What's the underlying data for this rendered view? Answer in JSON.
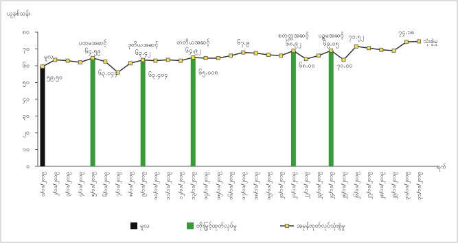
{
  "chart_data": {
    "type": "bar-line",
    "y_label": "ယူနစ်သန်း",
    "x_label": "ရက်",
    "categories": [
      "၁/၁၀/၂၀၁၉",
      "၂/၁၀/၂၀၁၉",
      "၃/၁၀/၂၀၁၉",
      "၄/၁၀/၂၀၁၉",
      "၅/၁၀/၂၀၁၉",
      "၆/၁၀/၂၀၁၉",
      "၇/၁၀/၂၀၁၉",
      "၈/၁၀/၂၀၁၉",
      "၉/၁၀/၂၀၁၉",
      "၁၀/၁၀/၂၀၁၉",
      "၁၁/၁၀/၂၀၁၉",
      "၁၂/၁၀/၂၀၁၉",
      "၁၃/၁၀/၂၀၁၉",
      "၁၄/၁၀/၂၀၁၉",
      "၁၅/၁၀/၂၀၁၉",
      "၁၆/၁၀/၂၀၁၉",
      "၁၇/၁၀/၂၀၁၉",
      "၁၈/၁၀/၂၀၁၉",
      "၁၉/၁၀/၂၀၁၉",
      "၂၀/၁၀/၂၀၁၉",
      "၂၁/၁၀/၂၀၁၉",
      "၂၂/၁၀/၂၀၁၉",
      "၂၃/၁၀/၂၀၁၉",
      "၂၄/၁၀/၂၀၁၉",
      "၂၅/၁၀/၂၀၁၉",
      "၂၆/၁၀/၂၀၁၉",
      "၂၇/၁၀/၂၀၁၉",
      "၂၈/၁၀/၂၀၁၉",
      "၂၉/၁၀/၂၀၁၉",
      "၃၀/၁၀/၂၀၁၉",
      "၃၁/၁၀/၂၀၁၉"
    ],
    "series": [
      {
        "name": "မူလ",
        "kind": "bar",
        "color": "#111111",
        "values": [
          59.5,
          null,
          null,
          null,
          null,
          null,
          null,
          null,
          null,
          null,
          null,
          null,
          null,
          null,
          null,
          null,
          null,
          null,
          null,
          null,
          null,
          null,
          null,
          null,
          null,
          null,
          null,
          null,
          null,
          null,
          null
        ],
        "value_labels": [
          "၅၉.၅၀",
          null,
          null,
          null,
          null,
          null,
          null,
          null,
          null,
          null,
          null,
          null,
          null,
          null,
          null,
          null,
          null,
          null,
          null,
          null,
          null,
          null,
          null,
          null,
          null,
          null,
          null,
          null,
          null,
          null,
          null
        ]
      },
      {
        "name": "တိုးမြှင့်ထုတ်လုပ်မှု",
        "kind": "bar",
        "color": "#3a9a3a",
        "values": [
          null,
          null,
          null,
          null,
          64.59,
          null,
          null,
          null,
          63.42,
          null,
          null,
          null,
          64.92,
          null,
          null,
          null,
          null,
          null,
          null,
          null,
          68.92,
          null,
          null,
          69.05,
          null,
          null,
          null,
          null,
          null,
          null,
          null
        ],
        "value_labels": [
          null,
          null,
          null,
          null,
          "၆၄.၅၉",
          null,
          null,
          null,
          "၆၃.၄၂",
          null,
          null,
          null,
          "၆၄.၉၂",
          null,
          null,
          null,
          null,
          null,
          null,
          null,
          "၆၈.၉၂",
          null,
          null,
          "၆၉.၀၅",
          null,
          null,
          null,
          null,
          null,
          null,
          null
        ]
      },
      {
        "name": "အမှန်ထုတ်လုပ်သုံးစွဲမှု",
        "kind": "line",
        "color": "#333333",
        "marker_color": "#f2e04a",
        "values": [
          59.5,
          63.5,
          63,
          62,
          64.59,
          62.5,
          56,
          61.5,
          63.42,
          63,
          63.5,
          63,
          64.92,
          64.5,
          64.5,
          66,
          67.9,
          67.5,
          66.5,
          66,
          68.92,
          64,
          66,
          69.05,
          63.5,
          71.52,
          70.5,
          69.5,
          69,
          74.18,
          74.5
        ],
        "value_labels": [
          null,
          null,
          null,
          null,
          null,
          null,
          null,
          null,
          null,
          null,
          null,
          null,
          null,
          null,
          null,
          null,
          "၆၇.၉",
          null,
          null,
          null,
          null,
          null,
          null,
          null,
          null,
          "၇၁.၅၂",
          null,
          null,
          null,
          "၇၄.၁၈",
          null
        ]
      }
    ],
    "stage_labels": [
      "ပထမအဆင့်",
      "ဒုတိယအဆင့်",
      "တတိယအဆင့်",
      "စတုတ္ထအဆင့်",
      "ပဉ္စမအဆင့်"
    ],
    "target_labels": [
      "၆၃.၀၄၄",
      "၆၃.၄၀၄",
      "၆၅.၀၀၈",
      "၆၈.၀၀",
      "၇၀.၀၀"
    ],
    "start_label": "မူလ",
    "end_label": "သုံးစွဲမှု",
    "ylim": [
      0,
      80
    ],
    "yticks": [
      {
        "value": 0,
        "label": "၀"
      },
      {
        "value": 10,
        "label": "၁၀"
      },
      {
        "value": 20,
        "label": "၂၀"
      },
      {
        "value": 30,
        "label": "၃၀"
      },
      {
        "value": 40,
        "label": "၄၀"
      },
      {
        "value": 50,
        "label": "၅၀"
      },
      {
        "value": 60,
        "label": "၆၀"
      },
      {
        "value": 70,
        "label": "၇၀"
      },
      {
        "value": 80,
        "label": "၈၀"
      }
    ]
  }
}
